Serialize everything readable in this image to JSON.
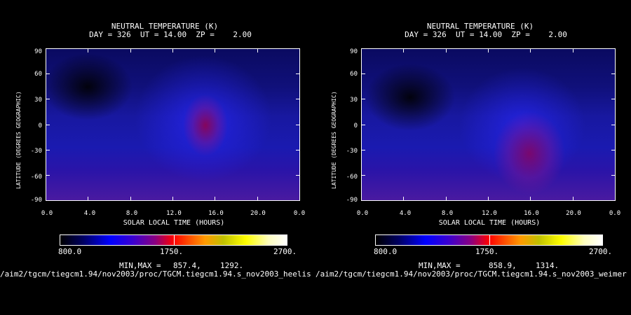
{
  "chart_data": [
    {
      "type": "heatmap",
      "title": "NEUTRAL TEMPERATURE (K)",
      "subtitle": "DAY = 326  UT = 14.00  ZP =    2.00",
      "xlabel": "SOLAR LOCAL TIME (HOURS)",
      "ylabel": "LATITUDE (DEGREES GEOGRAPHIC)",
      "x_ticks": [
        "0.0",
        "4.0",
        "8.0",
        "12.0",
        "16.0",
        "20.0",
        "0.0"
      ],
      "y_ticks": [
        "90",
        "60",
        "30",
        "0",
        "-30",
        "-60",
        "-90"
      ],
      "ylim": [
        -90,
        90
      ],
      "colorbar": {
        "min": "800.0",
        "mid": "1750.",
        "max": "2700."
      },
      "minmax_label": "MIN,MAX =",
      "min": "857.4,",
      "max": "1292.",
      "source_path": "/aim2/tgcm/tiegcm1.94/nov2003/proc/TGCM.tiegcm1.94.s_nov2003_heelis"
    },
    {
      "type": "heatmap",
      "title": "NEUTRAL TEMPERATURE (K)",
      "subtitle": "DAY = 326  UT = 14.00  ZP =    2.00",
      "xlabel": "SOLAR LOCAL TIME (HOURS)",
      "ylabel": "LATITUDE (DEGREES GEOGRAPHIC)",
      "x_ticks": [
        "0.0",
        "4.0",
        "8.0",
        "12.0",
        "16.0",
        "20.0",
        "0.0"
      ],
      "y_ticks": [
        "90",
        "60",
        "30",
        "0",
        "-30",
        "-60",
        "-90"
      ],
      "ylim": [
        -90,
        90
      ],
      "colorbar": {
        "min": "800.0",
        "mid": "1750.",
        "max": "2700."
      },
      "minmax_label": "MIN,MAX =",
      "min": "858.9,",
      "max": "1314.",
      "source_path": "/aim2/tgcm/tiegcm1.94/nov2003/proc/TGCM.tiegcm1.94.s_nov2003_weimer"
    }
  ],
  "colors": {
    "background": "#000000",
    "colormap": [
      "#000000",
      "#0000c8",
      "#1a1aff",
      "#5a00b4",
      "#a00050",
      "#ff0000",
      "#ff8c00",
      "#ffff00",
      "#ffffb4",
      "#ffffff"
    ]
  }
}
